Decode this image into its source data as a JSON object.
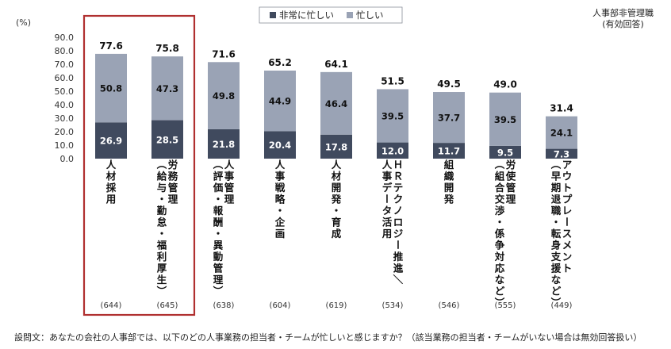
{
  "note": {
    "line1": "人事部非管理職",
    "line2": "(有効回答)"
  },
  "footnote": "設問文：あなたの会社の人事部では、以下のどの人事業務の担当者・チームが忙しいと感じますか？（該当業務の担当者・チームがいない場合は無効回答扱い）",
  "chart_data": {
    "type": "bar",
    "stacked": true,
    "title": "",
    "ylabel": "(%)",
    "ylim": [
      0,
      90
    ],
    "yticks": [
      "0.0",
      "10.0",
      "20.0",
      "30.0",
      "40.0",
      "50.0",
      "60.0",
      "70.0",
      "80.0",
      "90.0"
    ],
    "categories": [
      [
        "人材採用"
      ],
      [
        "労務管理",
        "（給与・勤怠・福利厚生）"
      ],
      [
        "人事管理",
        "（評価・報酬・異動管理）"
      ],
      [
        "人事戦略・企画"
      ],
      [
        "人材開発・育成"
      ],
      [
        "ＨＲテクノロジー推進／",
        "人事データ活用"
      ],
      [
        "組織開発"
      ],
      [
        "労使管理",
        "（組合交渉・係争対応など）"
      ],
      [
        "アウトプレースメント",
        "（早期退職・転身支援など）"
      ]
    ],
    "series": [
      {
        "name": "非常に忙しい",
        "color": "#404a5e",
        "values": [
          26.9,
          28.5,
          21.8,
          20.4,
          17.8,
          12.0,
          11.7,
          9.5,
          7.3
        ]
      },
      {
        "name": "忙しい",
        "color": "#9aa3b5",
        "values": [
          50.8,
          47.3,
          49.8,
          44.9,
          46.4,
          39.5,
          37.7,
          39.5,
          24.1
        ]
      }
    ],
    "totals": [
      "77.6",
      "75.8",
      "71.6",
      "65.2",
      "64.1",
      "51.5",
      "49.5",
      "49.0",
      "31.4"
    ],
    "n": [
      "(644)",
      "(645)",
      "(638)",
      "(604)",
      "(619)",
      "(534)",
      "(546)",
      "(555)",
      "(449)"
    ],
    "legend_position": "top-center",
    "highlight_categories": [
      0,
      1
    ],
    "highlight_color": "#b03030",
    "grid": false
  }
}
